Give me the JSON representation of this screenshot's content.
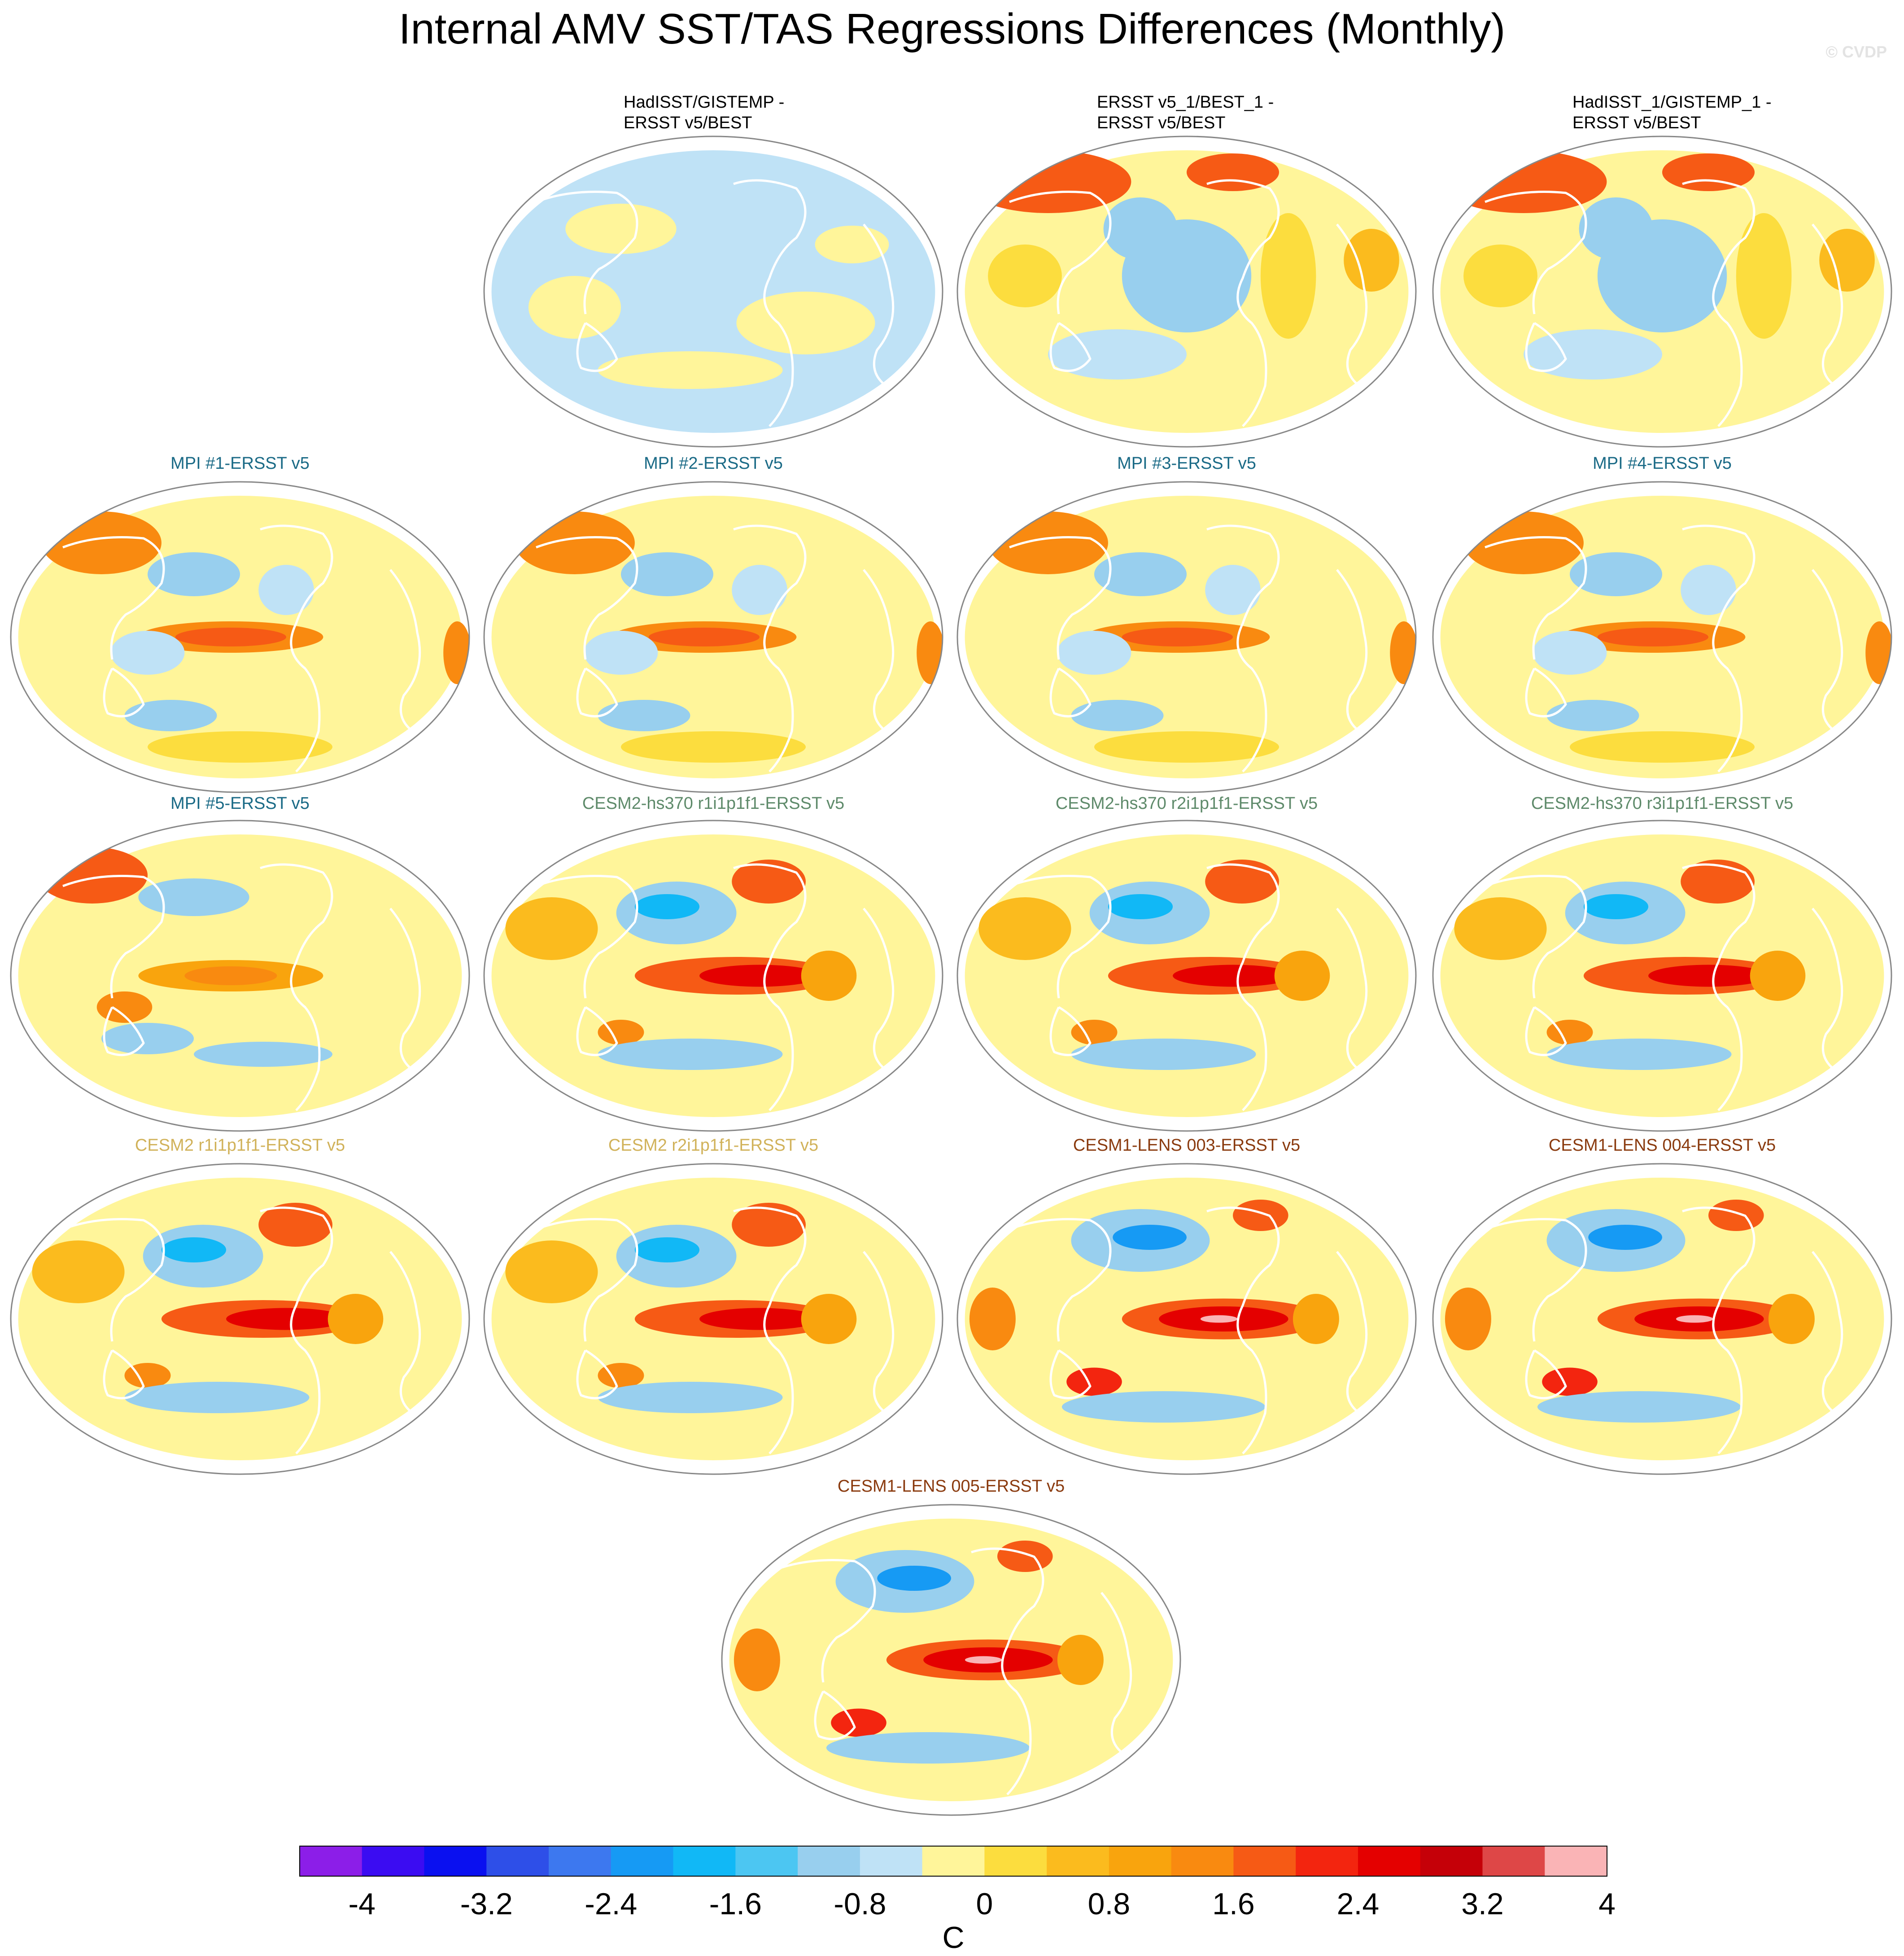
{
  "title": "Internal AMV SST/TAS Regressions Differences (Monthly)",
  "watermark": "© CVDP",
  "colorbar": {
    "label": "C",
    "tick_labels": [
      "-4",
      "-3.2",
      "-2.4",
      "-1.6",
      "-0.8",
      "0",
      "0.8",
      "1.6",
      "2.4",
      "3.2",
      "4"
    ],
    "colors": [
      "#8c1ee8",
      "#3b0cf2",
      "#0a10f0",
      "#2e4fe8",
      "#3d78ef",
      "#169af4",
      "#11b8f6",
      "#4cc6f2",
      "#98cfee",
      "#bfe2f6",
      "#fff59a",
      "#fcdd3e",
      "#fbbb1e",
      "#f9a40d",
      "#f98a10",
      "#f65a15",
      "#f3250f",
      "#e40000",
      "#c50008",
      "#de4747",
      "#fab4b6"
    ]
  },
  "panels": [
    {
      "id": "hadisst-gistemp",
      "title": "HadISST/GISTEMP -\nERSST v5/BEST",
      "title_color": "#000000",
      "pattern": "obs1"
    },
    {
      "id": "ersst-v5-1-best-1",
      "title": "ERSST v5_1/BEST_1 -\nERSST v5/BEST",
      "title_color": "#000000",
      "pattern": "obs2"
    },
    {
      "id": "hadisst-1-gistemp-1",
      "title": "HadISST_1/GISTEMP_1 -\nERSST v5/BEST",
      "title_color": "#000000",
      "pattern": "obs2"
    },
    {
      "id": "mpi-1",
      "title": "MPI #1-ERSST v5",
      "title_color": "#1a6a86",
      "pattern": "mpi"
    },
    {
      "id": "mpi-2",
      "title": "MPI #2-ERSST v5",
      "title_color": "#1a6a86",
      "pattern": "mpi"
    },
    {
      "id": "mpi-3",
      "title": "MPI #3-ERSST v5",
      "title_color": "#1a6a86",
      "pattern": "mpi"
    },
    {
      "id": "mpi-4",
      "title": "MPI #4-ERSST v5",
      "title_color": "#1a6a86",
      "pattern": "mpi"
    },
    {
      "id": "mpi-5",
      "title": "MPI #5-ERSST v5",
      "title_color": "#1a6a86",
      "pattern": "mpi5"
    },
    {
      "id": "cesm2-hs370-r1",
      "title": "CESM2-hs370 r1i1p1f1-ERSST v5",
      "title_color": "#5e8a6a",
      "pattern": "cesm2"
    },
    {
      "id": "cesm2-hs370-r2",
      "title": "CESM2-hs370 r2i1p1f1-ERSST v5",
      "title_color": "#5e8a6a",
      "pattern": "cesm2"
    },
    {
      "id": "cesm2-hs370-r3",
      "title": "CESM2-hs370 r3i1p1f1-ERSST v5",
      "title_color": "#5e8a6a",
      "pattern": "cesm2"
    },
    {
      "id": "cesm2-r1",
      "title": "CESM2 r1i1p1f1-ERSST v5",
      "title_color": "#d1b25a",
      "pattern": "cesm2"
    },
    {
      "id": "cesm2-r2",
      "title": "CESM2 r2i1p1f1-ERSST v5",
      "title_color": "#d1b25a",
      "pattern": "cesm2"
    },
    {
      "id": "cesm1-lens-003",
      "title": "CESM1-LENS 003-ERSST v5",
      "title_color": "#8a3a0e",
      "pattern": "cesm1"
    },
    {
      "id": "cesm1-lens-004",
      "title": "CESM1-LENS 004-ERSST v5",
      "title_color": "#8a3a0e",
      "pattern": "cesm1"
    },
    {
      "id": "cesm1-lens-005",
      "title": "CESM1-LENS 005-ERSST v5",
      "title_color": "#8a3a0e",
      "pattern": "cesm1"
    }
  ],
  "chart_data": {
    "type": "map-panels",
    "title": "Internal AMV SST/TAS Regressions Differences (Monthly)",
    "variable": "SST/TAS regression difference",
    "units": "C",
    "colorbar_levels": [
      -4,
      -3.6,
      -3.2,
      -2.8,
      -2.4,
      -2.0,
      -1.6,
      -1.2,
      -0.8,
      -0.4,
      0,
      0.4,
      0.8,
      1.2,
      1.6,
      2.0,
      2.4,
      2.8,
      3.2,
      3.6,
      4
    ],
    "colorbar_range": [
      -4,
      4
    ],
    "panel_count": 16
  }
}
